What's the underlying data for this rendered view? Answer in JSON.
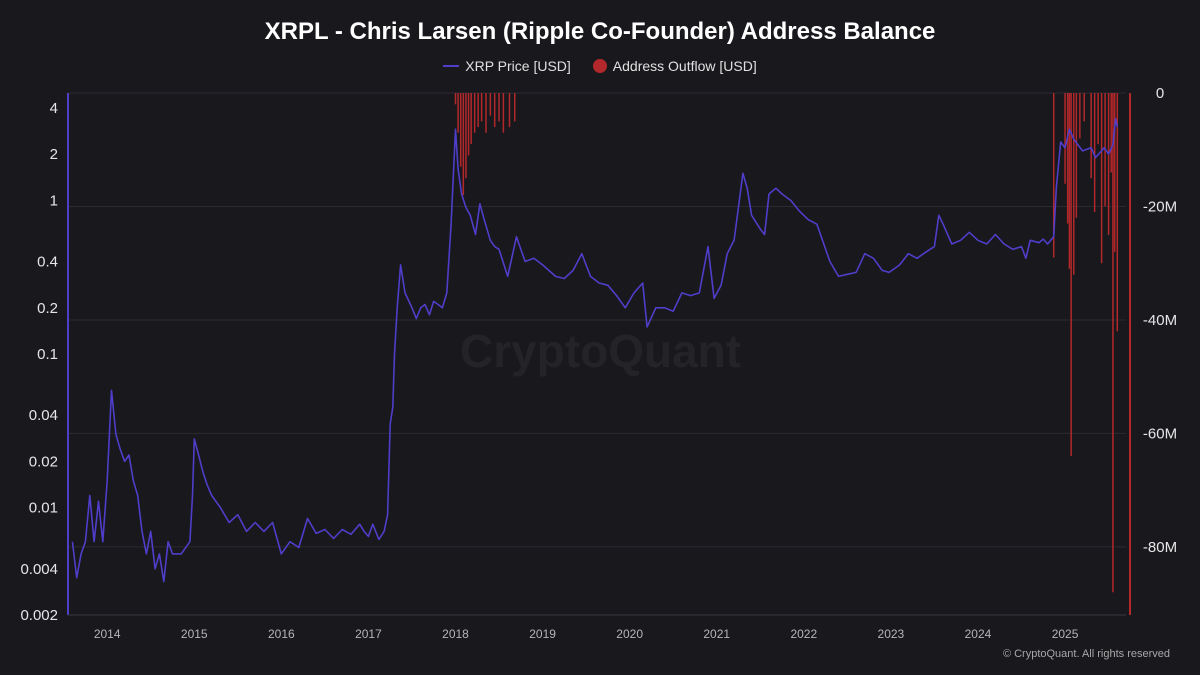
{
  "chart_data": {
    "type": "line",
    "title": "XRPL - Chris Larsen (Ripple Co-Founder) Address Balance",
    "legend_position": "top-center",
    "grid": true,
    "left_axis": {
      "scale": "log",
      "ylim": [
        0.002,
        5
      ],
      "ticks": [
        {
          "value": 4,
          "label": "4"
        },
        {
          "value": 2,
          "label": "2"
        },
        {
          "value": 1,
          "label": "1"
        },
        {
          "value": 0.4,
          "label": "0.4"
        },
        {
          "value": 0.2,
          "label": "0.2"
        },
        {
          "value": 0.1,
          "label": "0.1"
        },
        {
          "value": 0.04,
          "label": "0.04"
        },
        {
          "value": 0.02,
          "label": "0.02"
        },
        {
          "value": 0.01,
          "label": "0.01"
        },
        {
          "value": 0.004,
          "label": "0.004"
        },
        {
          "value": 0.002,
          "label": "0.002"
        }
      ]
    },
    "right_axis": {
      "scale": "linear",
      "ylim": [
        -92,
        0
      ],
      "ticks": [
        {
          "value": 0,
          "label": "0"
        },
        {
          "value": -20,
          "label": "-20M"
        },
        {
          "value": -40,
          "label": "-40M"
        },
        {
          "value": -60,
          "label": "-60M"
        },
        {
          "value": -80,
          "label": "-80M"
        }
      ]
    },
    "x_axis": {
      "range": [
        2013.55,
        2025.7
      ],
      "ticks": [
        "2014",
        "2015",
        "2016",
        "2017",
        "2018",
        "2019",
        "2020",
        "2021",
        "2022",
        "2023",
        "2024",
        "2025"
      ]
    },
    "series": [
      {
        "name": "XRP Price [USD]",
        "color": "#4f3ec9",
        "axis": "left",
        "points": [
          [
            2013.6,
            0.006
          ],
          [
            2013.65,
            0.0035
          ],
          [
            2013.7,
            0.005
          ],
          [
            2013.75,
            0.006
          ],
          [
            2013.8,
            0.012
          ],
          [
            2013.85,
            0.006
          ],
          [
            2013.9,
            0.011
          ],
          [
            2013.95,
            0.006
          ],
          [
            2014.0,
            0.015
          ],
          [
            2014.05,
            0.058
          ],
          [
            2014.1,
            0.03
          ],
          [
            2014.15,
            0.024
          ],
          [
            2014.2,
            0.02
          ],
          [
            2014.25,
            0.022
          ],
          [
            2014.3,
            0.015
          ],
          [
            2014.35,
            0.012
          ],
          [
            2014.4,
            0.007
          ],
          [
            2014.45,
            0.005
          ],
          [
            2014.5,
            0.007
          ],
          [
            2014.55,
            0.004
          ],
          [
            2014.6,
            0.005
          ],
          [
            2014.65,
            0.0033
          ],
          [
            2014.7,
            0.006
          ],
          [
            2014.75,
            0.005
          ],
          [
            2014.85,
            0.005
          ],
          [
            2014.95,
            0.006
          ],
          [
            2014.98,
            0.012
          ],
          [
            2015.0,
            0.028
          ],
          [
            2015.05,
            0.022
          ],
          [
            2015.1,
            0.017
          ],
          [
            2015.15,
            0.014
          ],
          [
            2015.2,
            0.012
          ],
          [
            2015.3,
            0.01
          ],
          [
            2015.4,
            0.008
          ],
          [
            2015.5,
            0.009
          ],
          [
            2015.6,
            0.007
          ],
          [
            2015.7,
            0.008
          ],
          [
            2015.8,
            0.007
          ],
          [
            2015.9,
            0.008
          ],
          [
            2016.0,
            0.005
          ],
          [
            2016.1,
            0.006
          ],
          [
            2016.2,
            0.0055
          ],
          [
            2016.3,
            0.0085
          ],
          [
            2016.4,
            0.0068
          ],
          [
            2016.5,
            0.0072
          ],
          [
            2016.6,
            0.0063
          ],
          [
            2016.7,
            0.0072
          ],
          [
            2016.8,
            0.0067
          ],
          [
            2016.9,
            0.0078
          ],
          [
            2016.95,
            0.007
          ],
          [
            2017.0,
            0.0065
          ],
          [
            2017.05,
            0.0078
          ],
          [
            2017.12,
            0.0062
          ],
          [
            2017.18,
            0.007
          ],
          [
            2017.22,
            0.009
          ],
          [
            2017.25,
            0.035
          ],
          [
            2017.28,
            0.045
          ],
          [
            2017.3,
            0.1
          ],
          [
            2017.33,
            0.2
          ],
          [
            2017.37,
            0.38
          ],
          [
            2017.42,
            0.25
          ],
          [
            2017.5,
            0.2
          ],
          [
            2017.55,
            0.17
          ],
          [
            2017.6,
            0.2
          ],
          [
            2017.65,
            0.21
          ],
          [
            2017.7,
            0.18
          ],
          [
            2017.75,
            0.22
          ],
          [
            2017.8,
            0.21
          ],
          [
            2017.85,
            0.2
          ],
          [
            2017.9,
            0.25
          ],
          [
            2017.95,
            0.7
          ],
          [
            2018.0,
            2.9
          ],
          [
            2018.03,
            1.6
          ],
          [
            2018.07,
            1.1
          ],
          [
            2018.12,
            0.9
          ],
          [
            2018.17,
            0.8
          ],
          [
            2018.23,
            0.6
          ],
          [
            2018.28,
            0.95
          ],
          [
            2018.33,
            0.75
          ],
          [
            2018.4,
            0.55
          ],
          [
            2018.45,
            0.5
          ],
          [
            2018.5,
            0.48
          ],
          [
            2018.6,
            0.32
          ],
          [
            2018.7,
            0.58
          ],
          [
            2018.75,
            0.48
          ],
          [
            2018.8,
            0.4
          ],
          [
            2018.9,
            0.42
          ],
          [
            2019.0,
            0.38
          ],
          [
            2019.15,
            0.32
          ],
          [
            2019.25,
            0.31
          ],
          [
            2019.35,
            0.35
          ],
          [
            2019.45,
            0.45
          ],
          [
            2019.55,
            0.32
          ],
          [
            2019.65,
            0.29
          ],
          [
            2019.75,
            0.28
          ],
          [
            2019.85,
            0.24
          ],
          [
            2019.95,
            0.2
          ],
          [
            2020.05,
            0.25
          ],
          [
            2020.15,
            0.29
          ],
          [
            2020.2,
            0.15
          ],
          [
            2020.3,
            0.2
          ],
          [
            2020.4,
            0.2
          ],
          [
            2020.5,
            0.19
          ],
          [
            2020.6,
            0.25
          ],
          [
            2020.7,
            0.24
          ],
          [
            2020.8,
            0.25
          ],
          [
            2020.9,
            0.5
          ],
          [
            2020.97,
            0.23
          ],
          [
            2021.05,
            0.28
          ],
          [
            2021.12,
            0.45
          ],
          [
            2021.2,
            0.55
          ],
          [
            2021.3,
            1.5
          ],
          [
            2021.35,
            1.2
          ],
          [
            2021.4,
            0.8
          ],
          [
            2021.5,
            0.65
          ],
          [
            2021.55,
            0.6
          ],
          [
            2021.6,
            1.1
          ],
          [
            2021.68,
            1.2
          ],
          [
            2021.75,
            1.1
          ],
          [
            2021.85,
            1.0
          ],
          [
            2021.95,
            0.85
          ],
          [
            2022.05,
            0.75
          ],
          [
            2022.15,
            0.7
          ],
          [
            2022.3,
            0.4
          ],
          [
            2022.4,
            0.32
          ],
          [
            2022.5,
            0.33
          ],
          [
            2022.6,
            0.34
          ],
          [
            2022.7,
            0.45
          ],
          [
            2022.8,
            0.42
          ],
          [
            2022.9,
            0.35
          ],
          [
            2022.98,
            0.34
          ],
          [
            2023.1,
            0.38
          ],
          [
            2023.2,
            0.45
          ],
          [
            2023.3,
            0.42
          ],
          [
            2023.4,
            0.46
          ],
          [
            2023.5,
            0.5
          ],
          [
            2023.55,
            0.8
          ],
          [
            2023.6,
            0.7
          ],
          [
            2023.7,
            0.52
          ],
          [
            2023.8,
            0.55
          ],
          [
            2023.9,
            0.62
          ],
          [
            2024.0,
            0.55
          ],
          [
            2024.1,
            0.52
          ],
          [
            2024.2,
            0.6
          ],
          [
            2024.3,
            0.52
          ],
          [
            2024.4,
            0.48
          ],
          [
            2024.5,
            0.5
          ],
          [
            2024.55,
            0.42
          ],
          [
            2024.6,
            0.55
          ],
          [
            2024.7,
            0.53
          ],
          [
            2024.75,
            0.56
          ],
          [
            2024.8,
            0.52
          ],
          [
            2024.87,
            0.58
          ],
          [
            2024.9,
            1.2
          ],
          [
            2024.95,
            2.4
          ],
          [
            2025.0,
            2.2
          ],
          [
            2025.05,
            2.9
          ],
          [
            2025.1,
            2.5
          ],
          [
            2025.2,
            2.1
          ],
          [
            2025.3,
            2.2
          ],
          [
            2025.35,
            1.9
          ],
          [
            2025.45,
            2.2
          ],
          [
            2025.5,
            2.0
          ],
          [
            2025.55,
            2.3
          ],
          [
            2025.58,
            3.4
          ],
          [
            2025.6,
            3.0
          ]
        ]
      },
      {
        "name": "Address Outflow [USD]",
        "color": "#b2282b",
        "axis": "right",
        "values_unit": "M",
        "points": [
          [
            2018.0,
            -2.0
          ],
          [
            2018.03,
            -7
          ],
          [
            2018.06,
            -13
          ],
          [
            2018.09,
            -18
          ],
          [
            2018.12,
            -15
          ],
          [
            2018.15,
            -11
          ],
          [
            2018.18,
            -9
          ],
          [
            2018.22,
            -7
          ],
          [
            2018.26,
            -6
          ],
          [
            2018.3,
            -5
          ],
          [
            2018.35,
            -7
          ],
          [
            2018.4,
            -4
          ],
          [
            2018.45,
            -6
          ],
          [
            2018.5,
            -5
          ],
          [
            2018.55,
            -7
          ],
          [
            2018.62,
            -6
          ],
          [
            2018.68,
            -5
          ],
          [
            2024.87,
            -29
          ],
          [
            2025.0,
            -16
          ],
          [
            2025.03,
            -23
          ],
          [
            2025.05,
            -31
          ],
          [
            2025.07,
            -64
          ],
          [
            2025.1,
            -32
          ],
          [
            2025.13,
            -22
          ],
          [
            2025.17,
            -8
          ],
          [
            2025.22,
            -5
          ],
          [
            2025.3,
            -15
          ],
          [
            2025.34,
            -21
          ],
          [
            2025.38,
            -9
          ],
          [
            2025.42,
            -30
          ],
          [
            2025.46,
            -20
          ],
          [
            2025.5,
            -25
          ],
          [
            2025.53,
            -14
          ],
          [
            2025.55,
            -88
          ],
          [
            2025.57,
            -28
          ],
          [
            2025.6,
            -42
          ]
        ]
      }
    ]
  },
  "watermark": "CryptoQuant",
  "copyright": "© CryptoQuant. All rights reserved"
}
